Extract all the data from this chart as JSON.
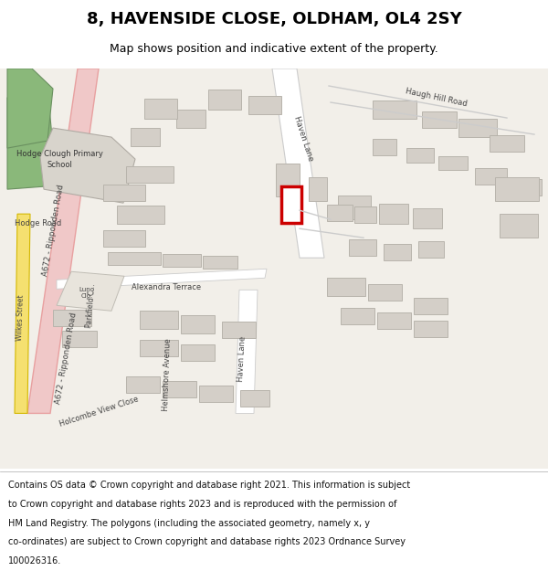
{
  "title": "8, HAVENSIDE CLOSE, OLDHAM, OL4 2SY",
  "subtitle": "Map shows position and indicative extent of the property.",
  "footer_lines": [
    "Contains OS data © Crown copyright and database right 2021. This information is subject",
    "to Crown copyright and database rights 2023 and is reproduced with the permission of",
    "HM Land Registry. The polygons (including the associated geometry, namely x, y",
    "co-ordinates) are subject to Crown copyright and database rights 2023 Ordnance Survey",
    "100026316."
  ],
  "bg_color": "#ffffff",
  "map_bg": "#f2efe9",
  "road_main_color": "#f0c8c8",
  "road_main_border": "#e8a0a0",
  "road_secondary_color": "#ffffff",
  "building_color": "#d4cfc8",
  "building_border": "#b8b4ac",
  "green_color": "#8ab87a",
  "green_border": "#6a9060",
  "highlight_color": "#cc0000",
  "highlight_fill": "#ffffff",
  "yellow_road_color": "#f5e070",
  "yellow_road_border": "#d4b800",
  "school_grey": "#d8d4cc",
  "school_grey_border": "#b0aba4",
  "text_color": "#444444",
  "school_text_color": "#333333"
}
